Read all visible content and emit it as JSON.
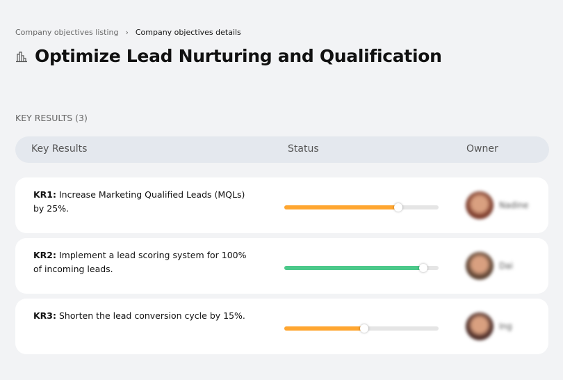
{
  "breadcrumb": {
    "parent": "Company objectives listing",
    "separator": "›",
    "current": "Company objectives details"
  },
  "title": "Optimize Lead Nurturing and Qualification",
  "section_label": "KEY RESULTS (3)",
  "columns": {
    "key_results": "Key Results",
    "status": "Status",
    "owner": "Owner"
  },
  "rows": [
    {
      "id": "KR1:",
      "text": " Increase Marketing Qualified Leads (MQLs) by 25%.",
      "progress": 74,
      "color": "#ffa630",
      "owner": "Nadine",
      "avatar": "#7a3a2a"
    },
    {
      "id": "KR2:",
      "text": " Implement a lead scoring system for 100% of incoming leads.",
      "progress": 90,
      "color": "#4cc98a",
      "owner": "Dai",
      "avatar": "#5a4030"
    },
    {
      "id": "KR3:",
      "text": " Shorten the lead conversion cycle by 15%.",
      "progress": 52,
      "color": "#ffa630",
      "owner": "Ing",
      "avatar": "#4a2a25"
    }
  ]
}
